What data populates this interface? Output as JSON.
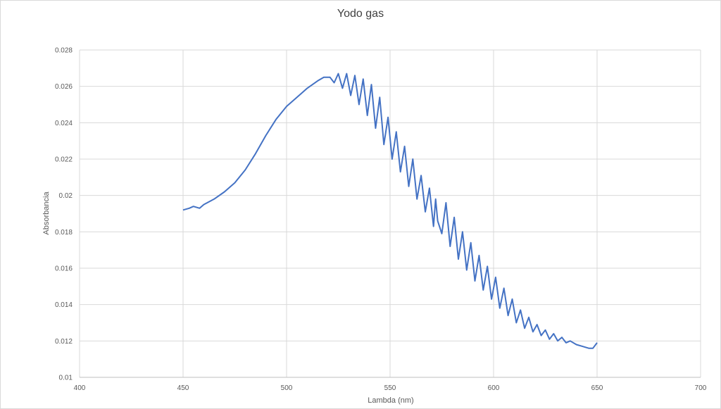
{
  "chart_data": {
    "type": "line",
    "title": "Yodo gas",
    "xlabel": "Lambda (nm)",
    "ylabel": "Absorbancia",
    "xlim": [
      400,
      700
    ],
    "ylim": [
      0.01,
      0.028
    ],
    "x_ticks": [
      "400",
      "450",
      "500",
      "550",
      "600",
      "650",
      "700"
    ],
    "y_ticks": [
      "0.01",
      "0.012",
      "0.014",
      "0.016",
      "0.018",
      "0.02",
      "0.022",
      "0.024",
      "0.026",
      "0.028"
    ],
    "grid": true,
    "legend": "none",
    "color": "#4472c4",
    "series": [
      {
        "x": [
          450,
          453,
          455,
          458,
          460,
          465,
          470,
          475,
          480,
          485,
          490,
          495,
          500,
          505,
          510,
          515,
          518,
          521,
          523,
          525,
          527,
          529,
          531,
          533,
          535,
          537,
          539,
          541,
          543,
          545,
          547,
          549,
          551,
          553,
          555,
          557,
          559,
          561,
          563,
          565,
          567,
          569,
          571,
          572,
          573,
          575,
          577,
          579,
          581,
          583,
          585,
          587,
          589,
          591,
          593,
          595,
          597,
          599,
          601,
          603,
          605,
          607,
          609,
          611,
          613,
          615,
          617,
          619,
          621,
          623,
          625,
          627,
          629,
          631,
          633,
          635,
          637,
          640,
          643,
          646,
          648,
          650
        ],
        "y": [
          0.0192,
          0.0193,
          0.0194,
          0.0193,
          0.0195,
          0.0198,
          0.0202,
          0.0207,
          0.0214,
          0.0223,
          0.0233,
          0.0242,
          0.0249,
          0.0254,
          0.0259,
          0.0263,
          0.0265,
          0.0265,
          0.0262,
          0.0267,
          0.0259,
          0.0267,
          0.0255,
          0.0266,
          0.025,
          0.0264,
          0.0244,
          0.0261,
          0.0237,
          0.0254,
          0.0228,
          0.0243,
          0.022,
          0.0235,
          0.0213,
          0.0227,
          0.0205,
          0.022,
          0.0198,
          0.0211,
          0.0191,
          0.0204,
          0.0183,
          0.0198,
          0.0186,
          0.0179,
          0.0196,
          0.0172,
          0.0188,
          0.0165,
          0.018,
          0.0159,
          0.0174,
          0.0153,
          0.0167,
          0.0148,
          0.0161,
          0.0143,
          0.0155,
          0.0138,
          0.0149,
          0.0134,
          0.0143,
          0.013,
          0.0137,
          0.0127,
          0.0133,
          0.0125,
          0.0129,
          0.0123,
          0.0126,
          0.0121,
          0.0124,
          0.012,
          0.0122,
          0.0119,
          0.012,
          0.0118,
          0.0117,
          0.0116,
          0.0116,
          0.0119
        ]
      }
    ]
  }
}
